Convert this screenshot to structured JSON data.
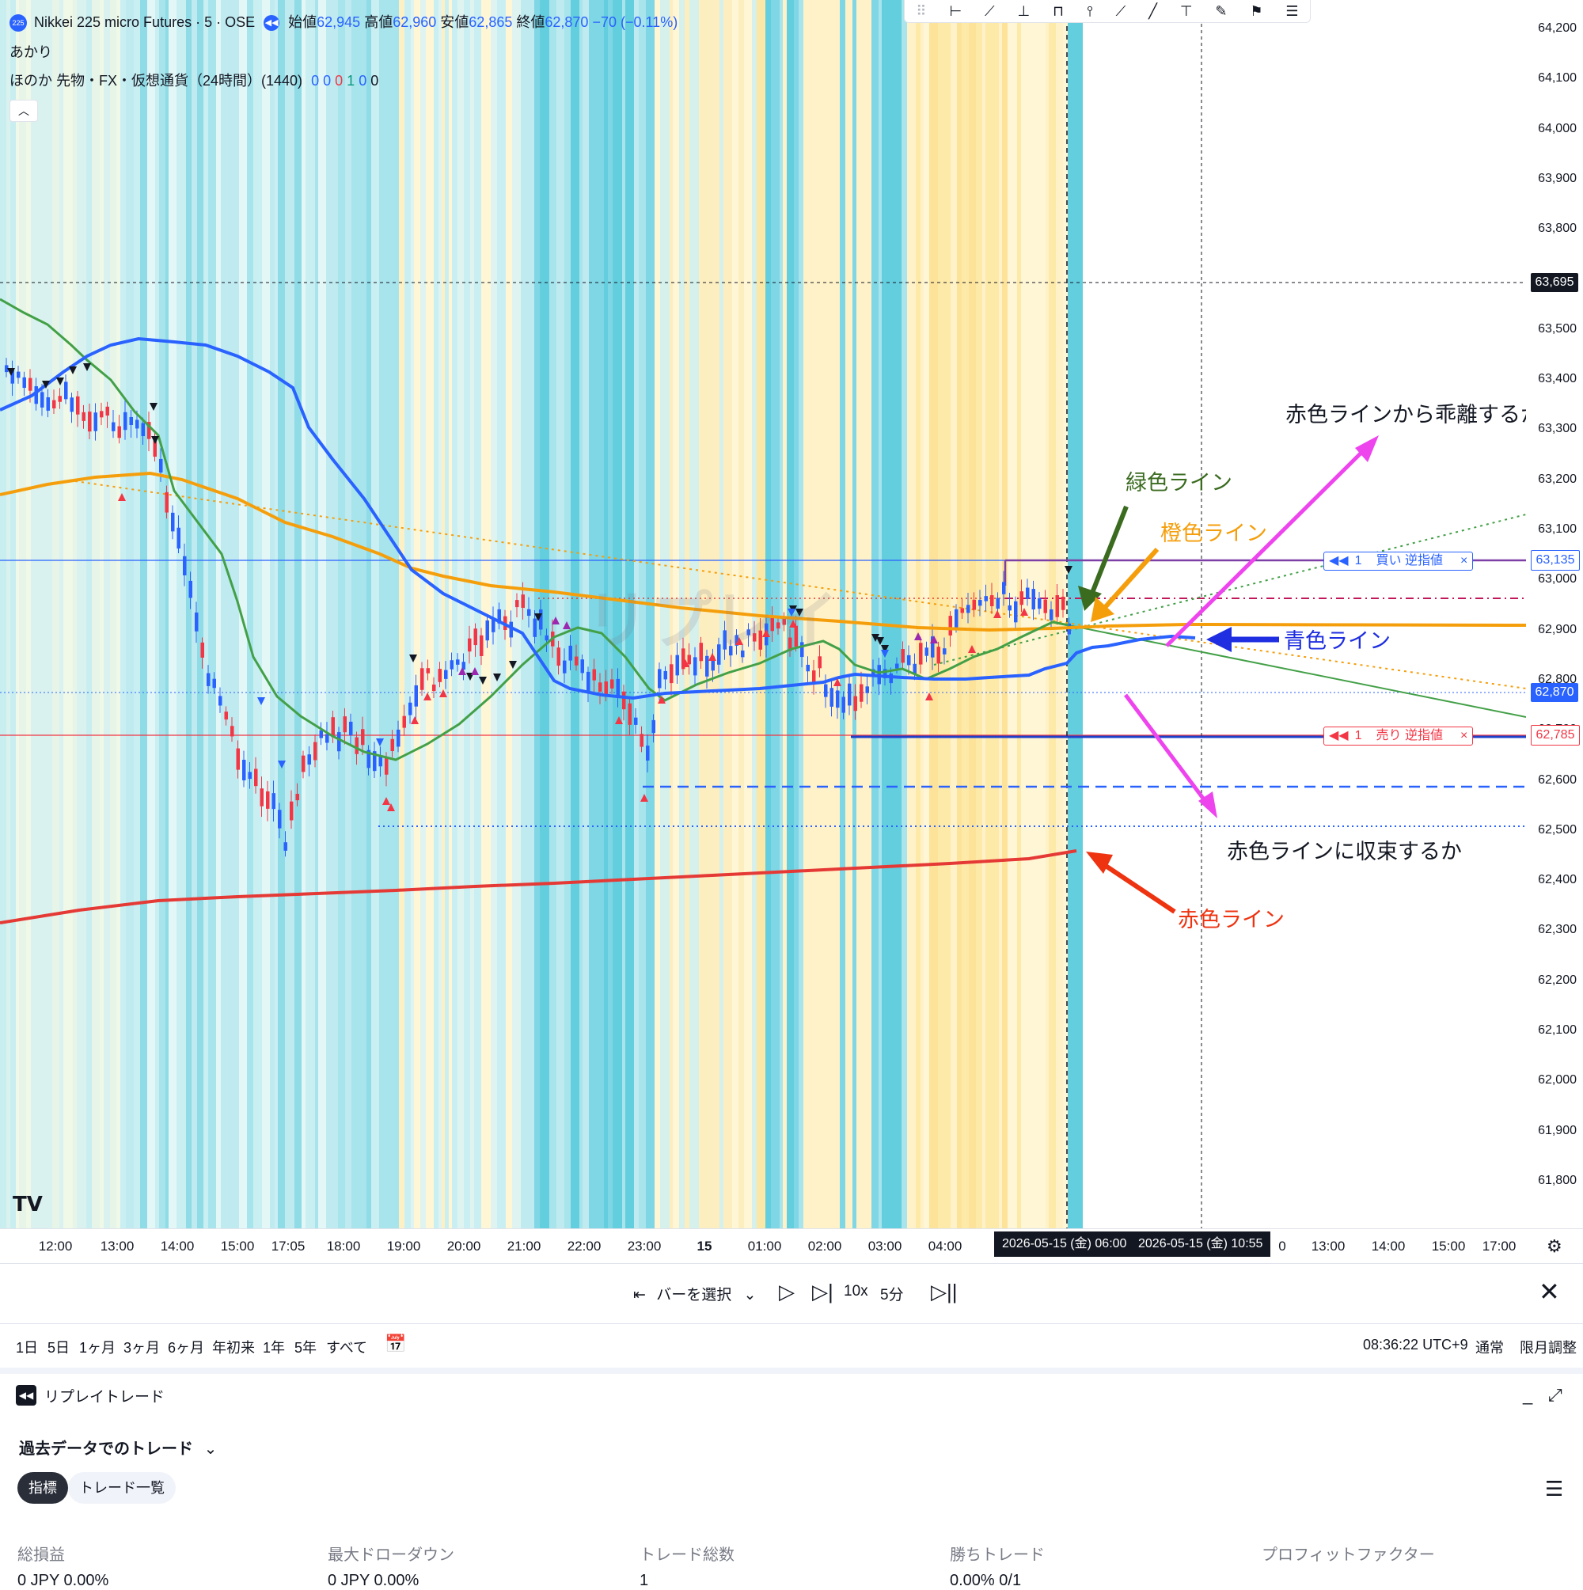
{
  "header": {
    "symbol_title": "Nikkei 225 micro Futures · 5 · OSE",
    "symbol_badge": "225",
    "ohlc": {
      "open_label": "始値",
      "open_value": "62,945",
      "high_label": "高値",
      "high_value": "62,960",
      "low_label": "安値",
      "low_value": "62,865",
      "close_label": "終値",
      "close_value": "62,870",
      "change": "−70 (−0.11%)"
    },
    "indicator_1": "あかり",
    "indicator_2": "ほのか 先物・FX・仮想通貨（24時間）(1440)",
    "indicator_2_values": [
      "0",
      "0",
      "0",
      "1",
      "0",
      "0"
    ]
  },
  "price_axis": {
    "ticks": [
      "64,200",
      "64,100",
      "64,000",
      "63,900",
      "63,800",
      "63,695",
      "63,600",
      "63,500",
      "63,400",
      "63,300",
      "63,200",
      "63,100",
      "63,000",
      "62,900",
      "62,800",
      "62,700",
      "62,600",
      "62,500",
      "62,400",
      "62,300",
      "62,200",
      "62,100",
      "62,000",
      "61,900",
      "61,800"
    ],
    "labels": {
      "crosshair": "63,695",
      "buy_stop": "63,135",
      "current": "62,870",
      "sell_stop": "62,785"
    },
    "colors": {
      "crosshair": "#131722",
      "buy_stop": "#2962ff",
      "current": "#2962ff",
      "sell_stop": "#f23645"
    }
  },
  "time_axis": {
    "ticks": [
      "12:00",
      "13:00",
      "14:00",
      "15:00",
      "17:05",
      "18:00",
      "19:00",
      "20:00",
      "21:00",
      "22:00",
      "23:00",
      "15",
      "01:00",
      "02:00",
      "03:00",
      "04:00",
      "0",
      "13:00",
      "14:00",
      "15:00",
      "17:00"
    ],
    "replay_start": "2026-05-15 (金)   06:00",
    "replay_cursor": "2026-05-15 (金)   10:55"
  },
  "orders": {
    "buy": {
      "qty": "1",
      "label": "買い 逆指値",
      "close": "×"
    },
    "sell": {
      "qty": "1",
      "label": "売り 逆指値",
      "close": "×"
    }
  },
  "annotations": {
    "diverge": "赤色ラインから乖離するか",
    "converge": "赤色ラインに収束するか",
    "green": "緑色ライン",
    "orange": "橙色ライン",
    "blue": "青色ライン",
    "red": "赤色ライン"
  },
  "watermark": "リプレイ",
  "replay_controls": {
    "select_bar": "バーを選択",
    "speed": "10x",
    "interval": "5分"
  },
  "range_bar": {
    "ranges": [
      "1日",
      "5日",
      "1ヶ月",
      "3ヶ月",
      "6ヶ月",
      "年初来",
      "1年",
      "5年",
      "すべて"
    ],
    "clock": "08:36:22 UTC+9",
    "session": "通常",
    "adjust": "限月調整"
  },
  "panel": {
    "title": "リプレイトレード",
    "mode": "過去データでのトレード",
    "tabs": [
      "指標",
      "トレード一覧"
    ],
    "stats": [
      {
        "label": "総損益",
        "value": "0 JPY  0.00%"
      },
      {
        "label": "最大ドローダウン",
        "value": "0 JPY  0.00%"
      },
      {
        "label": "トレード総数",
        "value": "1"
      },
      {
        "label": "勝ちトレード",
        "value": "0.00%  0/1"
      },
      {
        "label": "プロフィットファクター",
        "value": ""
      }
    ]
  }
}
